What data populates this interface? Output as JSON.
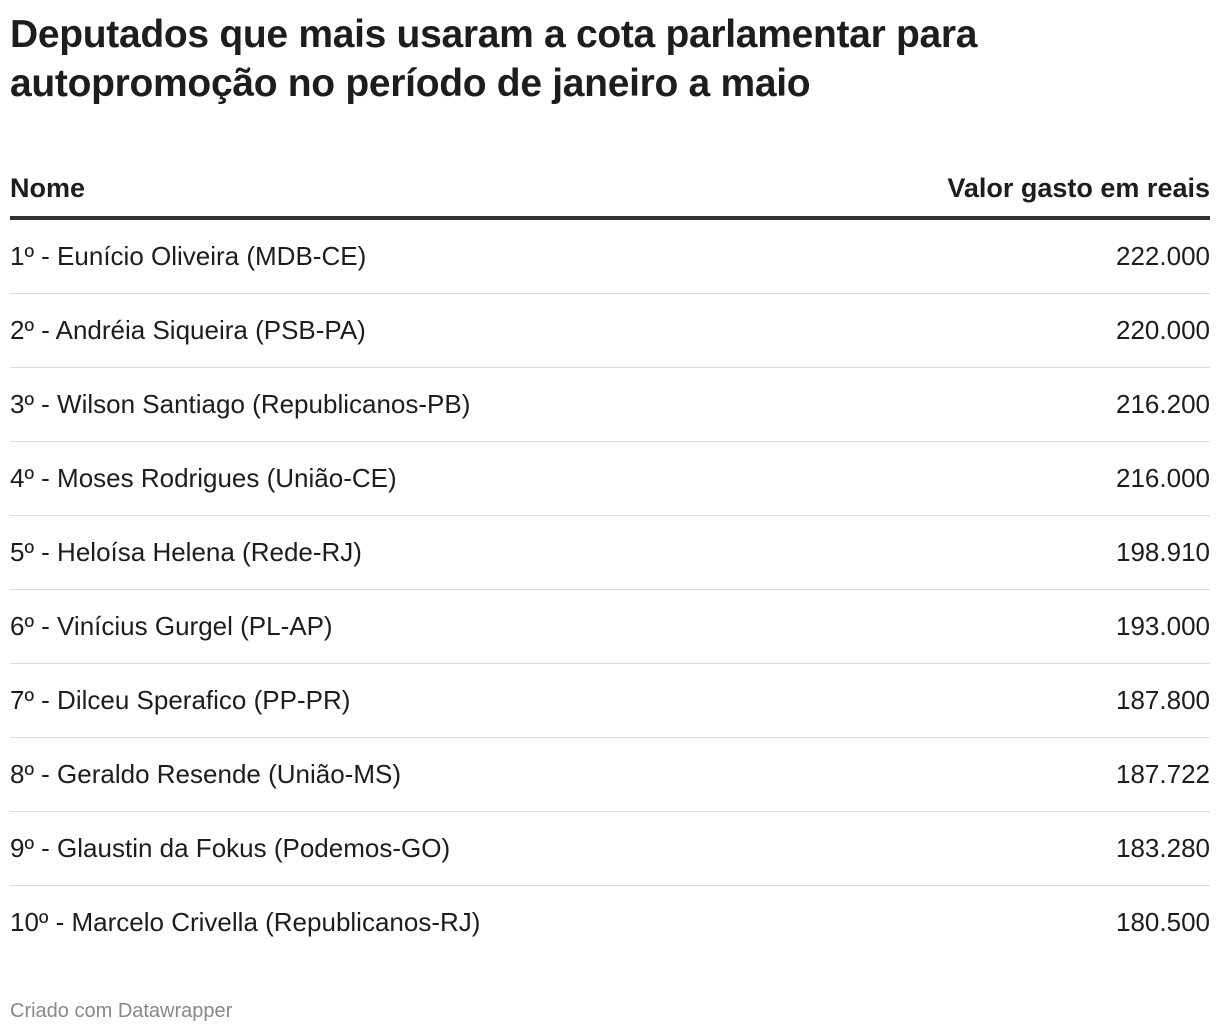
{
  "header": {
    "title": "Deputados que mais usaram a cota parlamentar para autopromoção no período de janeiro a maio"
  },
  "table": {
    "columns": [
      "Nome",
      "Valor gasto em reais"
    ],
    "rows": [
      [
        "1º - Eunício Oliveira (MDB-CE)",
        "222.000"
      ],
      [
        "2º - Andréia Siqueira (PSB-PA)",
        "220.000"
      ],
      [
        "3º - Wilson Santiago (Republicanos-PB)",
        "216.200"
      ],
      [
        "4º - Moses Rodrigues (União-CE)",
        "216.000"
      ],
      [
        "5º - Heloísa Helena (Rede-RJ)",
        "198.910"
      ],
      [
        "6º - Vinícius Gurgel (PL-AP)",
        "193.000"
      ],
      [
        "7º - Dilceu Sperafico (PP-PR)",
        "187.800"
      ],
      [
        "8º - Geraldo Resende (União-MS)",
        "187.722"
      ],
      [
        "9º - Glaustin da Fokus (Podemos-GO)",
        "183.280"
      ],
      [
        "10º - Marcelo Crivella (Republicanos-RJ)",
        "180.500"
      ]
    ]
  },
  "footer": {
    "credit": "Criado com Datawrapper"
  }
}
